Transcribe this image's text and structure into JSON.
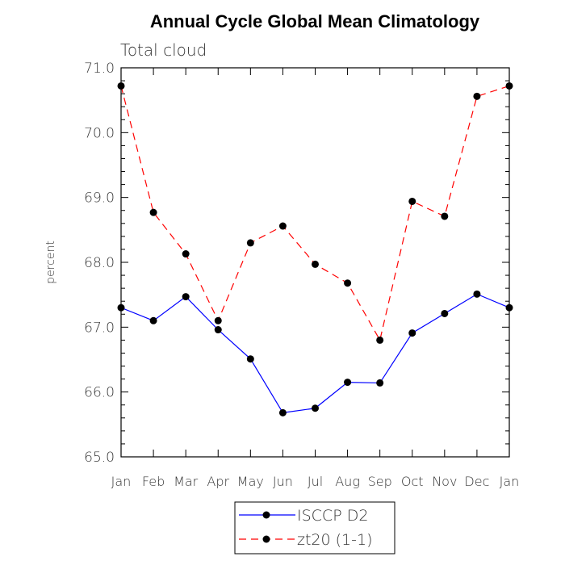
{
  "chart_data": {
    "type": "line",
    "title": "Annual Cycle Global Mean Climatology",
    "subtitle": "Total cloud",
    "xlabel": "",
    "ylabel": "percent",
    "categories": [
      "Jan",
      "Feb",
      "Mar",
      "Apr",
      "May",
      "Jun",
      "Jul",
      "Aug",
      "Sep",
      "Oct",
      "Nov",
      "Dec",
      "Jan"
    ],
    "ylim": [
      65.0,
      71.0
    ],
    "yticks": [
      "65.0",
      "66.0",
      "67.0",
      "68.0",
      "69.0",
      "70.0",
      "71.0"
    ],
    "series": [
      {
        "name": "ISCCP D2",
        "color": "#0000ff",
        "dash": "solid",
        "values": [
          67.3,
          67.1,
          67.47,
          66.96,
          66.51,
          65.68,
          65.75,
          66.15,
          66.14,
          66.91,
          67.21,
          67.51,
          67.3
        ]
      },
      {
        "name": "zt20 (1-1)",
        "color": "#ff0000",
        "dash": "dashed",
        "values": [
          70.72,
          68.77,
          68.13,
          67.1,
          68.3,
          68.56,
          67.97,
          67.68,
          66.8,
          68.94,
          68.71,
          70.56,
          70.72
        ]
      }
    ],
    "legend_position": "bottom-center"
  }
}
